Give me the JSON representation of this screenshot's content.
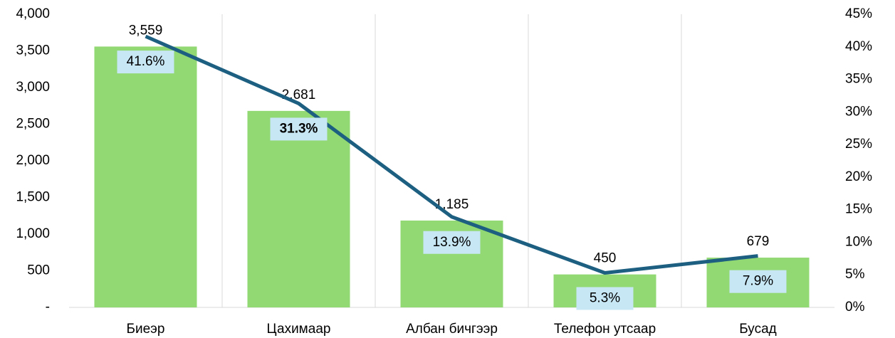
{
  "chart_data": {
    "type": "bar",
    "categories": [
      "Биеэр",
      "Цахимаар",
      "Албан бичгээр",
      "Телефон утсаар",
      "Бусад"
    ],
    "series": [
      {
        "type": "bar",
        "color": "#92d873",
        "values": [
          3559,
          2681,
          1185,
          450,
          679
        ],
        "value_labels": [
          "3,559",
          "2,681",
          "1,185",
          "450",
          "679"
        ]
      },
      {
        "type": "line",
        "axis": "y2",
        "color": "#1d5f80",
        "values": [
          41.6,
          31.3,
          13.9,
          5.3,
          7.9
        ],
        "value_labels": [
          "41.6%",
          "31.3%",
          "13.9%",
          "5.3%",
          "7.9%"
        ]
      }
    ],
    "ylim": [
      0,
      4000
    ],
    "yticks": [
      {
        "value": 0,
        "label": "-"
      },
      500,
      {
        "value": 1000,
        "label": "1,000"
      },
      {
        "value": 1500,
        "label": "1,500"
      },
      {
        "value": 2000,
        "label": "2,000"
      },
      {
        "value": 2500,
        "label": "2,500"
      },
      {
        "value": 3000,
        "label": "3,000"
      },
      {
        "value": 3500,
        "label": "3,500"
      },
      {
        "value": 4000,
        "label": "4,000"
      }
    ],
    "y2lim": [
      0,
      45
    ],
    "y2ticks": [
      {
        "value": 0,
        "label": "0%"
      },
      {
        "value": 5,
        "label": "5%"
      },
      {
        "value": 10,
        "label": "10%"
      },
      {
        "value": 15,
        "label": "15%"
      },
      {
        "value": 20,
        "label": "20%"
      },
      {
        "value": 25,
        "label": "25%"
      },
      {
        "value": 30,
        "label": "30%"
      },
      {
        "value": 35,
        "label": "35%"
      },
      {
        "value": 40,
        "label": "40%"
      },
      {
        "value": 45,
        "label": "45%"
      }
    ]
  }
}
